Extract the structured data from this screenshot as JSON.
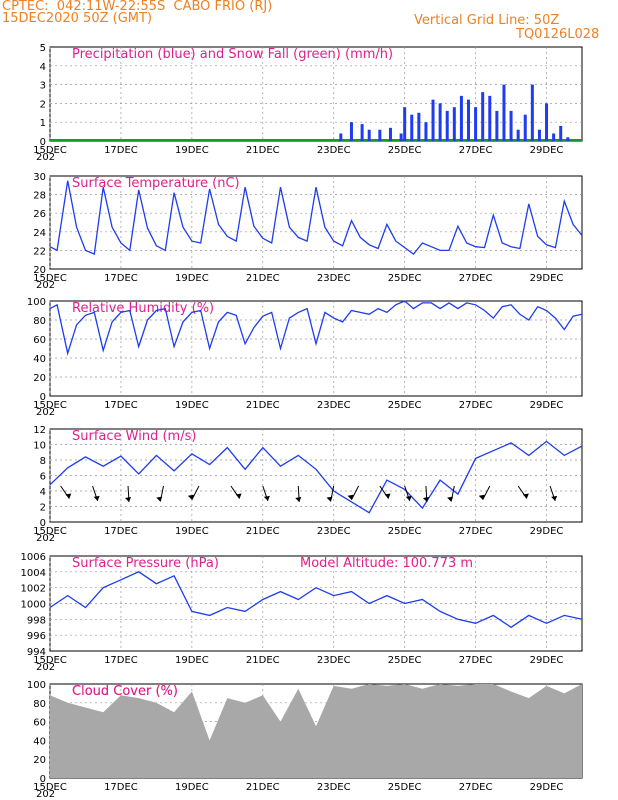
{
  "header": {
    "line1": "CPTEC:  042:11W-22:55S  CABO FRIO (RJ)",
    "line2": "15DEC2020 50Z (GMT)",
    "grid_note": "Vertical Grid Line: 50Z",
    "model_code": "TQ0126L028"
  },
  "x_ticks": [
    "15DEC",
    "17DEC",
    "19DEC",
    "21DEC",
    "23DEC",
    "25DEC",
    "27DEC",
    "29DEC"
  ],
  "x_sub_label": "202",
  "colors": {
    "curve": "#1e3cf0",
    "precip": "#1e3cf0",
    "snow": "#10a020",
    "cloud": "#a8a8a8",
    "title": "#e0208c",
    "header": "#f08020"
  },
  "panels": {
    "precip": {
      "title": "Precipitation (blue) and Snow Fall (green) (mm/h)"
    },
    "temp": {
      "title": "Surface Temperature (nC)"
    },
    "rh": {
      "title": "Relative Humidity (%)"
    },
    "wind": {
      "title": "Surface Wind (m/s)"
    },
    "pres": {
      "title": "Surface Pressure (hPa)",
      "altitude": "Model Altitude: 100.773 m"
    },
    "cloud": {
      "title": "Cloud Cover (%)"
    }
  },
  "chart_data": [
    {
      "type": "bar",
      "title": "Precipitation (blue) and Snow Fall (green) (mm/h)",
      "ylim": [
        0,
        5
      ],
      "y_ticks": [
        0,
        1,
        2,
        3,
        4,
        5
      ],
      "x": [
        "23.2",
        "23.5",
        "23.8",
        "24.0",
        "24.3",
        "24.6",
        "24.9",
        "25.0",
        "25.2",
        "25.4",
        "25.6",
        "25.8",
        "26.0",
        "26.2",
        "26.4",
        "26.6",
        "26.8",
        "27.0",
        "27.2",
        "27.4",
        "27.6",
        "27.8",
        "28.0",
        "28.2",
        "28.4",
        "28.6",
        "28.8",
        "29.0",
        "29.2",
        "29.4",
        "29.6",
        "29.8"
      ],
      "series": [
        {
          "values": [
            0.4,
            1.0,
            0.9,
            0.6,
            0.6,
            0.7,
            0.4,
            1.8,
            1.4,
            1.5,
            1.0,
            2.2,
            2.0,
            1.6,
            1.8,
            2.4,
            2.2,
            1.8,
            2.6,
            2.4,
            1.6,
            3.0,
            1.6,
            0.6,
            1.4,
            3.0,
            0.6,
            2.0,
            0.4,
            0.8,
            0.2,
            0.0
          ]
        }
      ]
    },
    {
      "type": "line",
      "title": "Surface Temperature (nC)",
      "ylim": [
        20,
        30
      ],
      "y_ticks": [
        20,
        22,
        24,
        26,
        28,
        30
      ],
      "x_days": [
        0,
        0.2,
        0.5,
        0.75,
        1,
        1.25,
        1.5,
        1.75,
        2,
        2.25,
        2.5,
        2.75,
        3,
        3.25,
        3.5,
        3.75,
        4,
        4.25,
        4.5,
        4.75,
        5,
        5.25,
        5.5,
        5.75,
        6,
        6.25,
        6.5,
        6.75,
        7,
        7.25,
        7.5,
        7.75,
        8,
        8.25,
        8.5,
        8.75,
        9,
        9.25,
        9.5,
        9.75,
        10,
        10.25,
        10.5,
        10.75,
        11,
        11.25,
        11.5,
        11.75,
        12,
        12.25,
        12.5,
        12.75,
        13,
        13.25,
        13.5,
        13.75,
        14,
        14.25,
        14.5,
        14.75,
        15
      ],
      "series": [
        {
          "values": [
            22.4,
            22.0,
            29.5,
            24.5,
            22.0,
            21.6,
            28.8,
            24.5,
            22.8,
            22.0,
            28.5,
            24.4,
            22.5,
            22.0,
            28.2,
            24.5,
            23.0,
            22.8,
            28.6,
            24.8,
            23.5,
            23.0,
            28.8,
            24.6,
            23.3,
            22.8,
            28.8,
            24.5,
            23.4,
            23.0,
            28.8,
            24.5,
            23.0,
            22.5,
            25.2,
            23.4,
            22.6,
            22.2,
            24.8,
            23.0,
            22.3,
            21.6,
            22.8,
            22.4,
            22.0,
            22.0,
            24.6,
            22.8,
            22.4,
            22.3,
            25.8,
            22.8,
            22.4,
            22.2,
            27.0,
            23.5,
            22.6,
            22.3,
            27.3,
            24.8,
            23.6
          ]
        }
      ]
    },
    {
      "type": "line",
      "title": "Relative Humidity (%)",
      "ylim": [
        0,
        100
      ],
      "y_ticks": [
        0,
        20,
        40,
        60,
        80,
        100
      ],
      "x_days": [
        0,
        0.2,
        0.5,
        0.75,
        1,
        1.25,
        1.5,
        1.75,
        2,
        2.25,
        2.5,
        2.75,
        3,
        3.25,
        3.5,
        3.75,
        4,
        4.25,
        4.5,
        4.75,
        5,
        5.25,
        5.5,
        5.75,
        6,
        6.25,
        6.5,
        6.75,
        7,
        7.25,
        7.5,
        7.75,
        8,
        8.25,
        8.5,
        8.75,
        9,
        9.25,
        9.5,
        9.75,
        10,
        10.25,
        10.5,
        10.75,
        11,
        11.25,
        11.5,
        11.75,
        12,
        12.25,
        12.5,
        12.75,
        13,
        13.25,
        13.5,
        13.75,
        14,
        14.25,
        14.5,
        14.75,
        15
      ],
      "series": [
        {
          "values": [
            92,
            96,
            45,
            75,
            85,
            88,
            48,
            78,
            88,
            90,
            52,
            80,
            90,
            92,
            52,
            78,
            88,
            90,
            50,
            78,
            88,
            85,
            55,
            72,
            84,
            88,
            50,
            82,
            88,
            92,
            55,
            88,
            82,
            78,
            90,
            88,
            86,
            92,
            88,
            96,
            100,
            92,
            98,
            98,
            92,
            98,
            92,
            98,
            96,
            90,
            82,
            94,
            96,
            86,
            80,
            94,
            90,
            82,
            70,
            84,
            86
          ]
        }
      ]
    },
    {
      "type": "line",
      "title": "Surface Wind (m/s)",
      "ylim": [
        0,
        12
      ],
      "y_ticks": [
        0,
        2,
        4,
        6,
        8,
        10,
        12
      ],
      "x_days": [
        0,
        0.5,
        1,
        1.5,
        2,
        2.5,
        3,
        3.5,
        4,
        4.5,
        5,
        5.5,
        6,
        6.5,
        7,
        7.5,
        8,
        8.5,
        9,
        9.5,
        10,
        10.5,
        11,
        11.5,
        12,
        12.5,
        13,
        13.5,
        14,
        14.5,
        15
      ],
      "series": [
        {
          "values": [
            4.8,
            7.0,
            8.4,
            7.2,
            8.5,
            6.2,
            8.6,
            6.6,
            8.8,
            7.4,
            9.6,
            6.8,
            9.6,
            7.2,
            8.6,
            6.8,
            4.0,
            2.6,
            1.2,
            5.4,
            4.2,
            1.8,
            5.4,
            3.6,
            8.2,
            9.2,
            10.2,
            8.6,
            10.4,
            8.6,
            9.8
          ]
        }
      ],
      "wind_arrow_days": [
        0.3,
        1.2,
        2.2,
        3.2,
        4.2,
        5.1,
        6.0,
        7.0,
        8.0,
        8.7,
        9.3,
        10.0,
        10.6,
        11.4,
        12.4,
        13.2,
        14.1
      ]
    },
    {
      "type": "line",
      "title": "Surface Pressure (hPa)",
      "ylim": [
        994,
        1006
      ],
      "y_ticks": [
        994,
        996,
        998,
        1000,
        1002,
        1004,
        1006
      ],
      "x_days": [
        0,
        0.5,
        1,
        1.5,
        2,
        2.5,
        3,
        3.5,
        4,
        4.5,
        5,
        5.5,
        6,
        6.5,
        7,
        7.5,
        8,
        8.5,
        9,
        9.5,
        10,
        10.5,
        11,
        11.5,
        12,
        12.5,
        13,
        13.5,
        14,
        14.5,
        15
      ],
      "series": [
        {
          "values": [
            999.5,
            1001.0,
            999.5,
            1002.0,
            1003.0,
            1004.0,
            1002.5,
            1003.5,
            999.0,
            998.5,
            999.5,
            999.0,
            1000.5,
            1001.5,
            1000.5,
            1002.0,
            1001.0,
            1001.5,
            1000.0,
            1001.0,
            1000.0,
            1000.5,
            999.0,
            998.0,
            997.5,
            998.5,
            997.0,
            998.5,
            997.5,
            998.5,
            998.0
          ]
        }
      ]
    },
    {
      "type": "area",
      "title": "Cloud Cover (%)",
      "ylim": [
        0,
        100
      ],
      "y_ticks": [
        0,
        20,
        40,
        60,
        80,
        100
      ],
      "x_days": [
        0,
        0.5,
        1,
        1.5,
        2,
        2.5,
        3,
        3.5,
        4,
        4.5,
        5,
        5.5,
        6,
        6.5,
        7,
        7.5,
        8,
        8.5,
        9,
        9.5,
        10,
        10.5,
        11,
        11.5,
        12,
        12.5,
        13,
        13.5,
        14,
        14.5,
        15
      ],
      "series": [
        {
          "values": [
            88,
            80,
            75,
            70,
            88,
            85,
            80,
            70,
            92,
            40,
            85,
            80,
            88,
            60,
            95,
            55,
            98,
            95,
            100,
            98,
            100,
            95,
            100,
            98,
            100,
            100,
            92,
            85,
            98,
            90,
            100
          ]
        }
      ]
    }
  ]
}
